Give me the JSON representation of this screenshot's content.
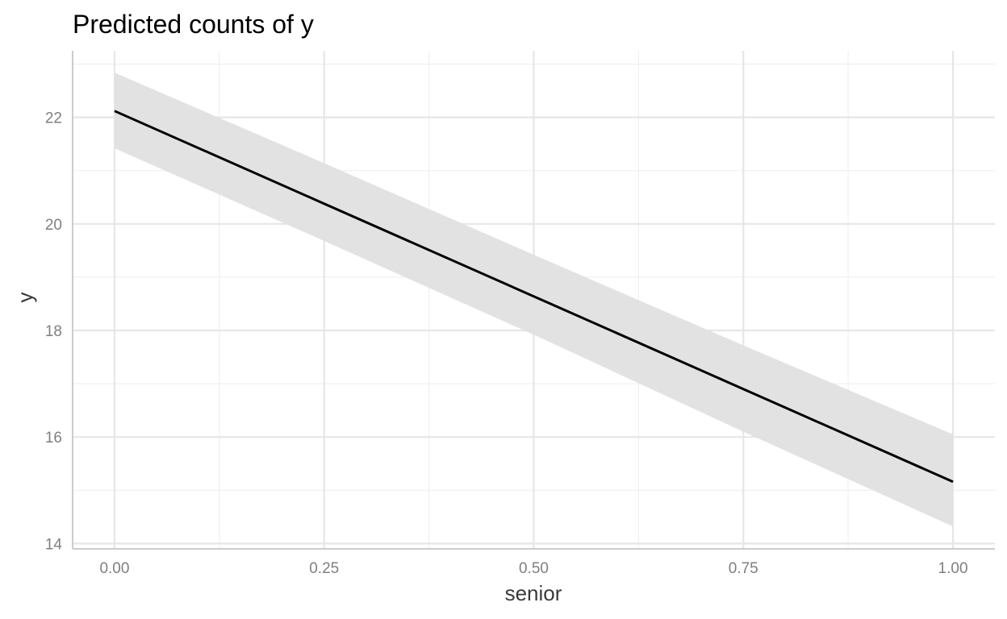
{
  "chart_data": {
    "type": "line",
    "title": "Predicted counts of y",
    "xlabel": "senior",
    "ylabel": "y",
    "xlim": [
      -0.05,
      1.05
    ],
    "ylim": [
      13.9,
      23.25
    ],
    "x_ticks": [
      0.0,
      0.25,
      0.5,
      0.75,
      1.0
    ],
    "x_tick_labels": [
      "0.00",
      "0.25",
      "0.50",
      "0.75",
      "1.00"
    ],
    "y_ticks": [
      14,
      16,
      18,
      20,
      22
    ],
    "y_tick_labels": [
      "14",
      "16",
      "18",
      "20",
      "22"
    ],
    "x_minor_ticks": [
      0.125,
      0.375,
      0.625,
      0.875
    ],
    "y_minor_ticks": [
      15,
      17,
      19,
      21,
      23
    ],
    "grid": true,
    "legend": "none",
    "series": [
      {
        "x": [
          0.0,
          0.25,
          0.5,
          0.75,
          1.0
        ],
        "y": [
          22.12,
          20.38,
          18.64,
          16.9,
          15.16
        ],
        "lower": [
          21.42,
          19.68,
          17.92,
          16.1,
          14.32
        ],
        "upper": [
          22.84,
          21.14,
          19.42,
          17.72,
          16.05
        ],
        "color": "#000000",
        "band_color": "#e0e0e0"
      }
    ]
  }
}
